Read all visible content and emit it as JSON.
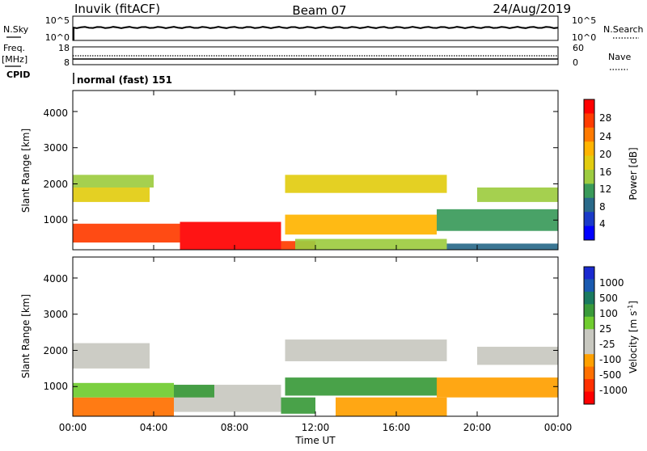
{
  "header": {
    "station": "Inuvik (fitACF)",
    "beam": "Beam 07",
    "date": "24/Aug/2019"
  },
  "nsky_panel": {
    "left_label": "N.Sky",
    "right_label": "N.Search",
    "left_ticks": [
      "10^5",
      "10^0"
    ],
    "right_ticks": [
      "10^5",
      "10^0"
    ]
  },
  "freq_panel": {
    "left_label_top": "Freq.",
    "left_label_unit": "[MHz]",
    "cpid_label": "CPID",
    "right_label": "Nave",
    "left_ticks": [
      "18",
      "8"
    ],
    "right_ticks": [
      "60",
      "0"
    ]
  },
  "cpid_text": "normal (fast) 151",
  "power_panel": {
    "ylabel": "Slant Range [km]",
    "yticks": [
      "4000",
      "3000",
      "2000",
      "1000"
    ],
    "colorbar_label": "Power [dB]",
    "colorbar_ticks": [
      "28",
      "24",
      "20",
      "16",
      "12",
      "8",
      "4"
    ],
    "colorbar_colors": [
      "#ff0000",
      "#ff3c00",
      "#ff7a00",
      "#ffb400",
      "#e2cc10",
      "#9dcc40",
      "#3a9a5a",
      "#2a6a8a",
      "#1a3ac8",
      "#0000ff"
    ]
  },
  "velocity_panel": {
    "ylabel": "Slant Range [km]",
    "yticks": [
      "4000",
      "3000",
      "2000",
      "1000"
    ],
    "colorbar_label": "Velocity [m s",
    "colorbar_superscript": "-1",
    "colorbar_label_end": "]",
    "colorbar_ticks": [
      "1000",
      "500",
      "100",
      "25",
      "-25",
      "-100",
      "-500",
      "-1000"
    ],
    "colorbar_colors": [
      "#1a2ad0",
      "#1a5ab0",
      "#1a7a60",
      "#3a9a3a",
      "#70cc30",
      "#c8c8c0",
      "#c8c8c0",
      "#ffa000",
      "#ff7000",
      "#ff3000",
      "#ff0000"
    ]
  },
  "x_axis": {
    "ticks": [
      "00:00",
      "04:00",
      "08:00",
      "12:00",
      "16:00",
      "20:00",
      "00:00"
    ],
    "label": "Time UT"
  },
  "chart_data": [
    {
      "type": "heatmap",
      "name": "power",
      "x_range_hours": [
        0,
        24
      ],
      "y_range_km": [
        180,
        4580
      ],
      "color_scale": {
        "label": "Power [dB]",
        "min": 0,
        "max": 30
      },
      "regions": [
        {
          "t": [
            0.0,
            5.3
          ],
          "r": [
            380,
            900
          ],
          "value": 28
        },
        {
          "t": [
            5.3,
            10.3
          ],
          "r": [
            180,
            950
          ],
          "value": 29
        },
        {
          "t": [
            10.3,
            12.0
          ],
          "r": [
            180,
            420
          ],
          "value": 27
        },
        {
          "t": [
            0.0,
            3.8
          ],
          "r": [
            1500,
            1900
          ],
          "value": 17
        },
        {
          "t": [
            0.0,
            4.0
          ],
          "r": [
            1900,
            2250
          ],
          "value": 12
        },
        {
          "t": [
            10.5,
            18.5
          ],
          "r": [
            1750,
            2250
          ],
          "value": 16
        },
        {
          "t": [
            10.5,
            18.0
          ],
          "r": [
            600,
            1150
          ],
          "value": 20
        },
        {
          "t": [
            11.0,
            18.5
          ],
          "r": [
            180,
            480
          ],
          "value": 13
        },
        {
          "t": [
            18.0,
            24.0
          ],
          "r": [
            700,
            1300
          ],
          "value": 11
        },
        {
          "t": [
            20.0,
            24.0
          ],
          "r": [
            1500,
            1900
          ],
          "value": 14
        },
        {
          "t": [
            18.5,
            24.0
          ],
          "r": [
            180,
            350
          ],
          "value": 7
        }
      ]
    },
    {
      "type": "heatmap",
      "name": "velocity",
      "x_range_hours": [
        0,
        24
      ],
      "y_range_km": [
        180,
        4580
      ],
      "color_scale": {
        "label": "Velocity [m s-1]",
        "min": -1000,
        "max": 1000
      },
      "regions": [
        {
          "t": [
            0.0,
            5.0
          ],
          "r": [
            180,
            700
          ],
          "value": -300
        },
        {
          "t": [
            0.0,
            5.0
          ],
          "r": [
            700,
            1100
          ],
          "value": 100
        },
        {
          "t": [
            0.0,
            3.8
          ],
          "r": [
            1500,
            2200
          ],
          "value": 0
        },
        {
          "t": [
            5.0,
            10.3
          ],
          "r": [
            300,
            1050
          ],
          "value": 0
        },
        {
          "t": [
            5.0,
            7.0
          ],
          "r": [
            700,
            1050
          ],
          "value": 200
        },
        {
          "t": [
            10.3,
            12.0
          ],
          "r": [
            250,
            700
          ],
          "value": 200
        },
        {
          "t": [
            10.5,
            18.5
          ],
          "r": [
            1700,
            2300
          ],
          "value": 0
        },
        {
          "t": [
            10.5,
            18.0
          ],
          "r": [
            750,
            1250
          ],
          "value": 300
        },
        {
          "t": [
            13.0,
            18.5
          ],
          "r": [
            180,
            700
          ],
          "value": -200
        },
        {
          "t": [
            18.0,
            24.0
          ],
          "r": [
            700,
            1250
          ],
          "value": -150
        },
        {
          "t": [
            20.0,
            24.0
          ],
          "r": [
            1600,
            2100
          ],
          "value": 0
        }
      ]
    }
  ]
}
